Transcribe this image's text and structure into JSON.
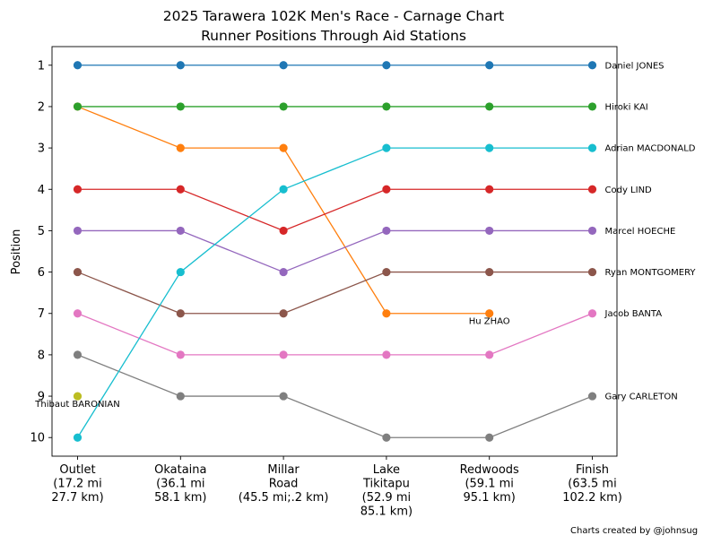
{
  "chart_data": {
    "type": "line",
    "title": "2025 Tarawera 102K Men's Race - Carnage Chart",
    "subtitle": "Runner Positions Through Aid Stations",
    "xlabel": "",
    "ylabel": "Position",
    "ylim": [
      10.45,
      0.55
    ],
    "y_inverted": true,
    "y_ticks": [
      "1",
      "2",
      "3",
      "4",
      "5",
      "6",
      "7",
      "8",
      "9",
      "10"
    ],
    "categories": [
      [
        "Outlet",
        "(17.2 mi",
        "27.7 km)"
      ],
      [
        "Okataina",
        "(36.1 mi",
        "58.1 km)"
      ],
      [
        "Millar",
        "Road",
        "(45.5 mi;.2 km)"
      ],
      [
        "Lake",
        "Tikitapu",
        "(52.9 mi",
        "85.1 km)"
      ],
      [
        "Redwoods",
        "(59.1 mi",
        "95.1 km)"
      ],
      [
        "Finish",
        "(63.5 mi",
        "102.2 km)"
      ]
    ],
    "series": [
      {
        "name": "Daniel JONES",
        "color": "#1f77b4",
        "values": [
          1,
          1,
          1,
          1,
          1,
          1
        ],
        "label": "Daniel JONES"
      },
      {
        "name": "Hu ZHAO",
        "color": "#ff7f0e",
        "values": [
          2,
          3,
          3,
          7,
          7,
          null
        ],
        "label": "Hu ZHAO"
      },
      {
        "name": "Hiroki KAI",
        "color": "#2ca02c",
        "values": [
          2,
          2,
          2,
          2,
          2,
          2
        ],
        "label": "Hiroki KAI"
      },
      {
        "name": "Cody LIND",
        "color": "#d62728",
        "values": [
          4,
          4,
          5,
          4,
          4,
          4
        ],
        "label": "Cody LIND"
      },
      {
        "name": "Marcel HOECHE",
        "color": "#9467bd",
        "values": [
          5,
          5,
          6,
          5,
          5,
          5
        ],
        "label": "Marcel HOECHE"
      },
      {
        "name": "Ryan MONTGOMERY",
        "color": "#8c564b",
        "values": [
          6,
          7,
          7,
          6,
          6,
          6
        ],
        "label": "Ryan MONTGOMERY"
      },
      {
        "name": "Jacob BANTA",
        "color": "#e377c2",
        "values": [
          7,
          8,
          8,
          8,
          8,
          7
        ],
        "label": "Jacob BANTA"
      },
      {
        "name": "Gary CARLETON",
        "color": "#7f7f7f",
        "values": [
          8,
          9,
          9,
          10,
          10,
          9
        ],
        "label": "Gary CARLETON"
      },
      {
        "name": "Thibaut BARONIAN",
        "color": "#bcbd22",
        "values": [
          9,
          null,
          null,
          null,
          null,
          null
        ],
        "label": "Thibaut BARONIAN"
      },
      {
        "name": "Adrian MACDONALD",
        "color": "#17becf",
        "values": [
          10,
          6,
          4,
          3,
          3,
          3
        ],
        "label": "Adrian MACDONALD"
      }
    ],
    "credit": "Charts created by @johnsug"
  }
}
